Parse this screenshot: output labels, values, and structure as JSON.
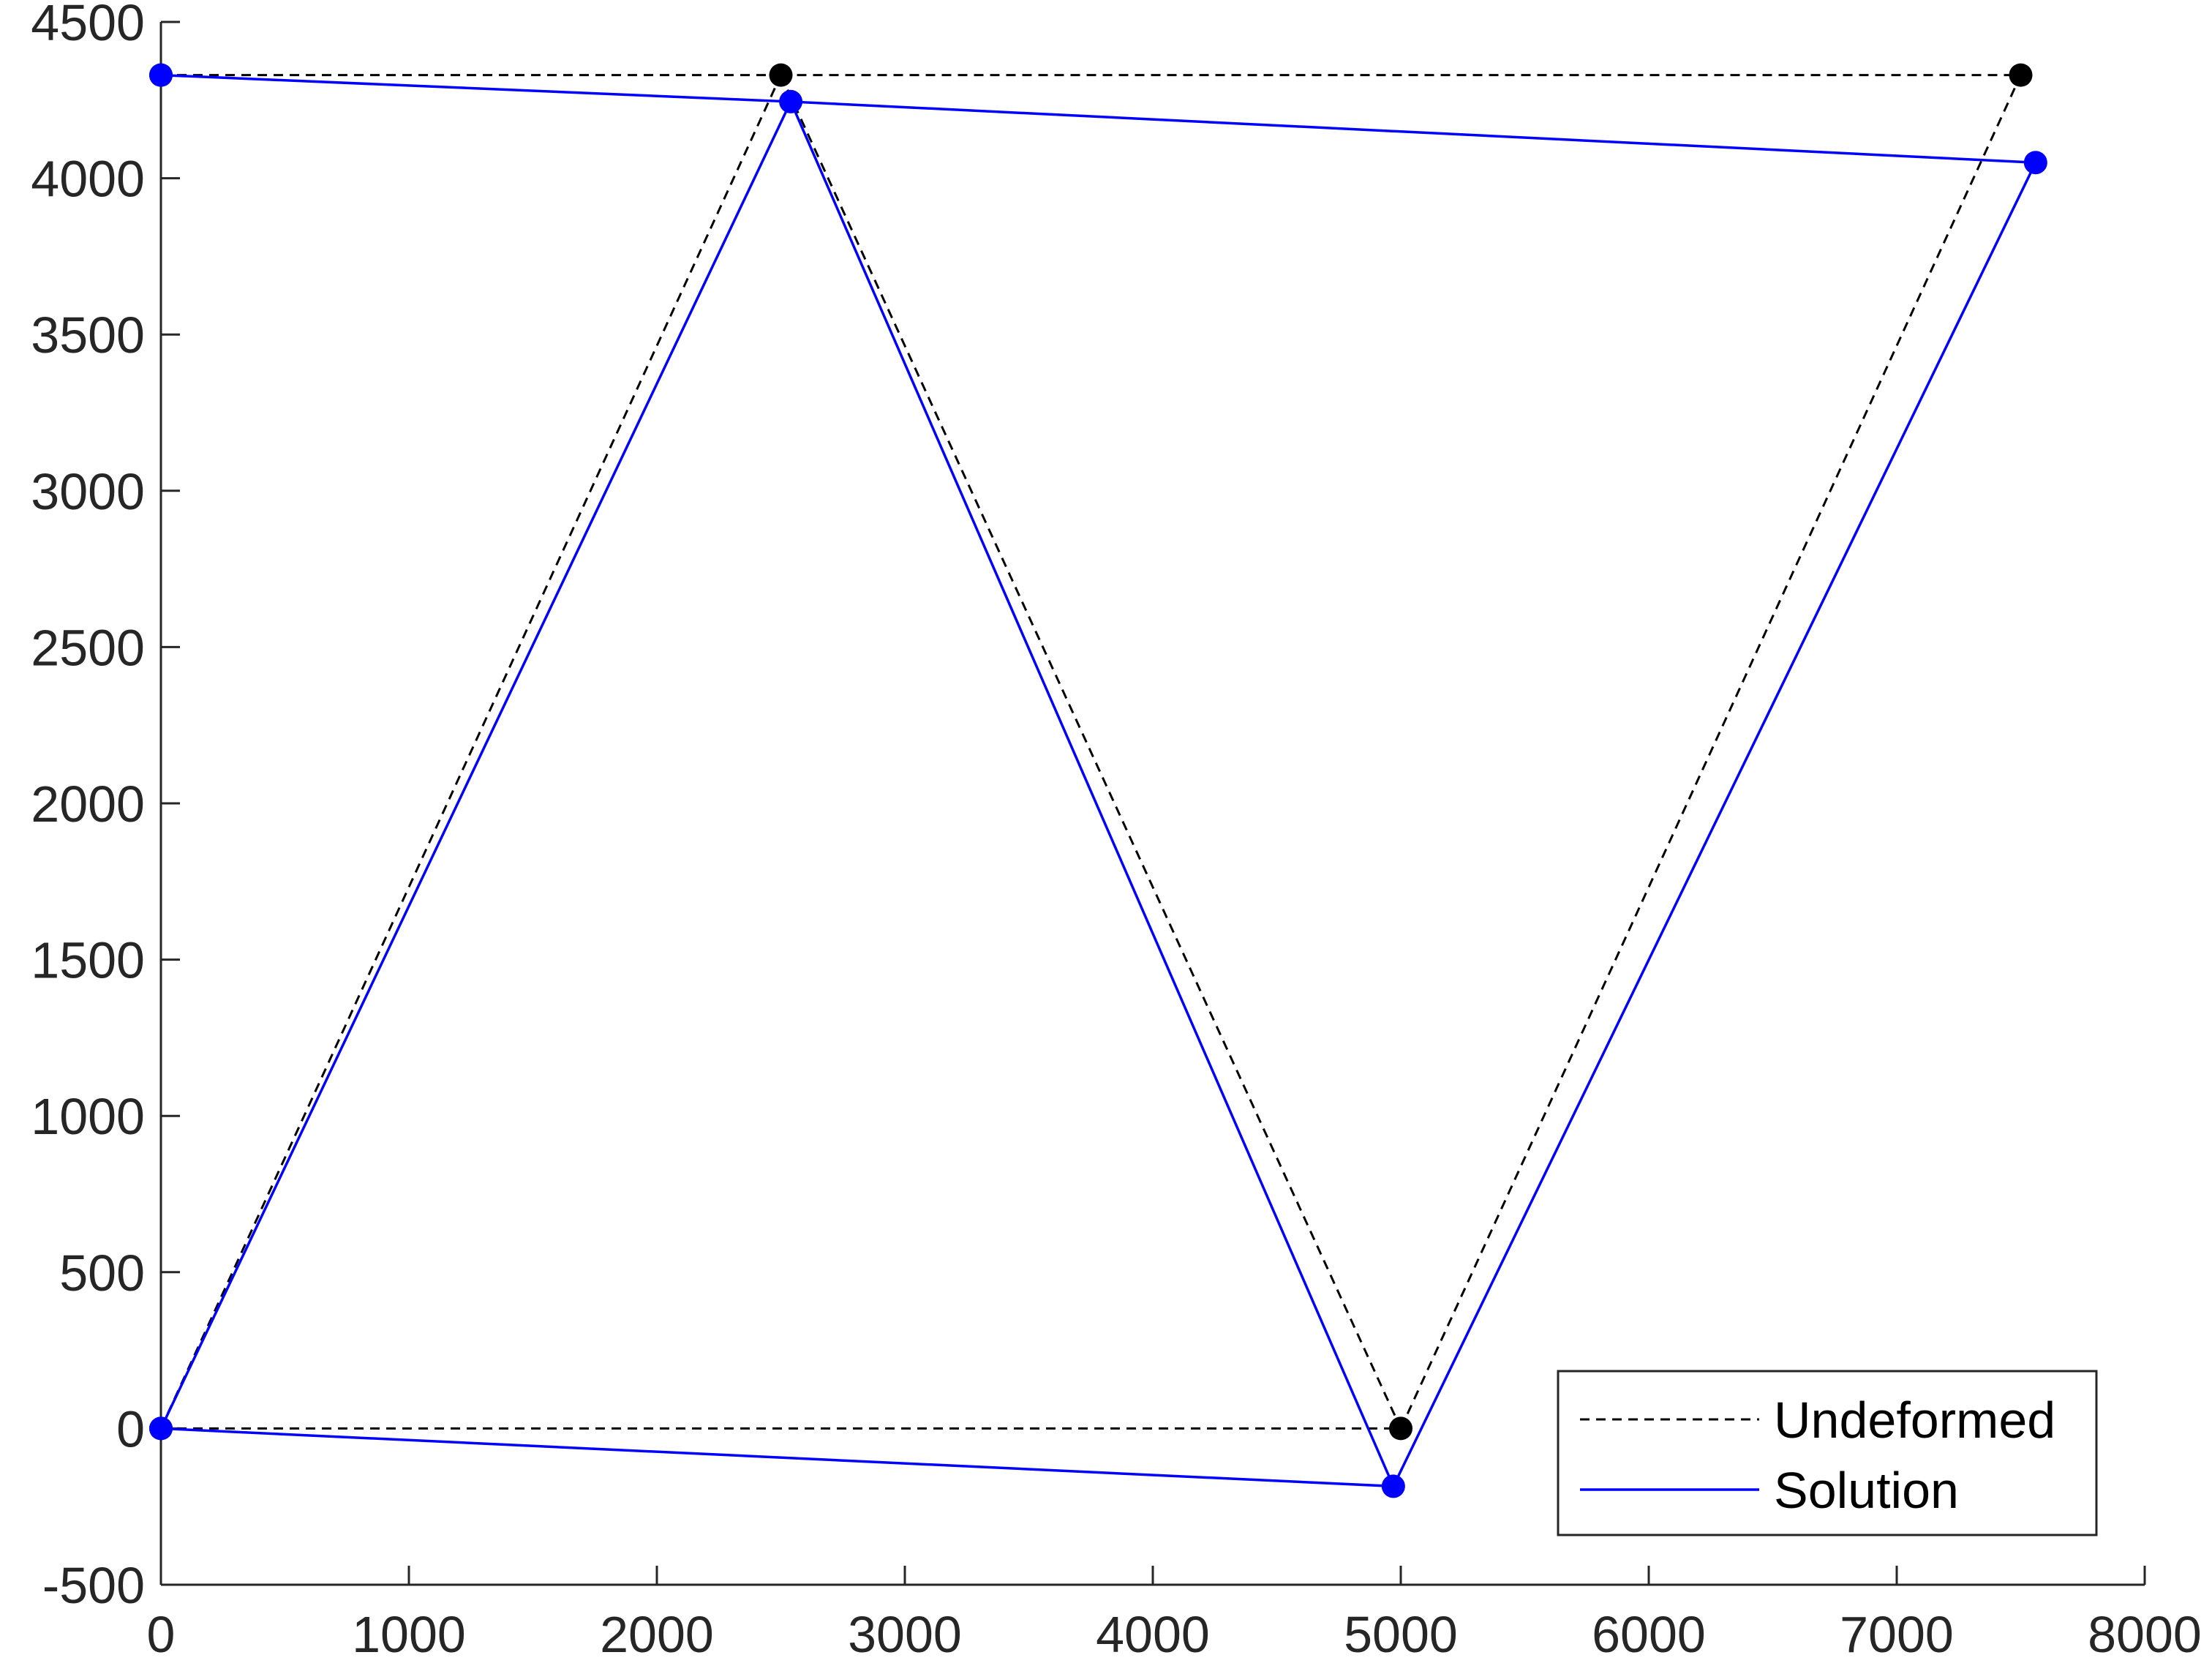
{
  "chart_data": {
    "type": "line",
    "title": "",
    "xlabel": "",
    "ylabel": "",
    "xlim": [
      0,
      8000
    ],
    "ylim": [
      -500,
      4500
    ],
    "xticks": [
      0,
      1000,
      2000,
      3000,
      4000,
      5000,
      6000,
      7000,
      8000
    ],
    "yticks": [
      -500,
      0,
      500,
      1000,
      1500,
      2000,
      2500,
      3000,
      3500,
      4000,
      4500
    ],
    "xtick_labels": [
      "0",
      "1000",
      "2000",
      "3000",
      "4000",
      "5000",
      "6000",
      "7000",
      "8000"
    ],
    "ytick_labels": [
      "-500",
      "0",
      "500",
      "1000",
      "1500",
      "2000",
      "2500",
      "3000",
      "3500",
      "4000",
      "4500"
    ],
    "grid": false,
    "legend_position": "bottom-right",
    "series": [
      {
        "name": "Undeformed",
        "style": "dashed",
        "color": "#000000",
        "nodes": [
          [
            0,
            0
          ],
          [
            0,
            4330
          ],
          [
            2500,
            4330
          ],
          [
            5000,
            0
          ],
          [
            7500,
            4330
          ]
        ],
        "segments": [
          [
            0,
            0,
            2500,
            4330
          ],
          [
            0,
            0,
            5000,
            0
          ],
          [
            0,
            4330,
            2500,
            4330
          ],
          [
            2500,
            4330,
            7500,
            4330
          ],
          [
            2500,
            4330,
            5000,
            0
          ],
          [
            5000,
            0,
            7500,
            4330
          ]
        ]
      },
      {
        "name": "Solution",
        "style": "solid",
        "color": "#0000ff",
        "nodes": [
          [
            0,
            0
          ],
          [
            0,
            4330
          ],
          [
            2540,
            4245
          ],
          [
            4970,
            -185
          ],
          [
            7560,
            4050
          ]
        ],
        "segments": [
          [
            0,
            0,
            2540,
            4245
          ],
          [
            0,
            0,
            4970,
            -185
          ],
          [
            0,
            4330,
            2540,
            4245
          ],
          [
            2540,
            4245,
            7560,
            4050
          ],
          [
            2540,
            4245,
            4970,
            -185
          ],
          [
            4970,
            -185,
            7560,
            4050
          ]
        ]
      }
    ]
  }
}
